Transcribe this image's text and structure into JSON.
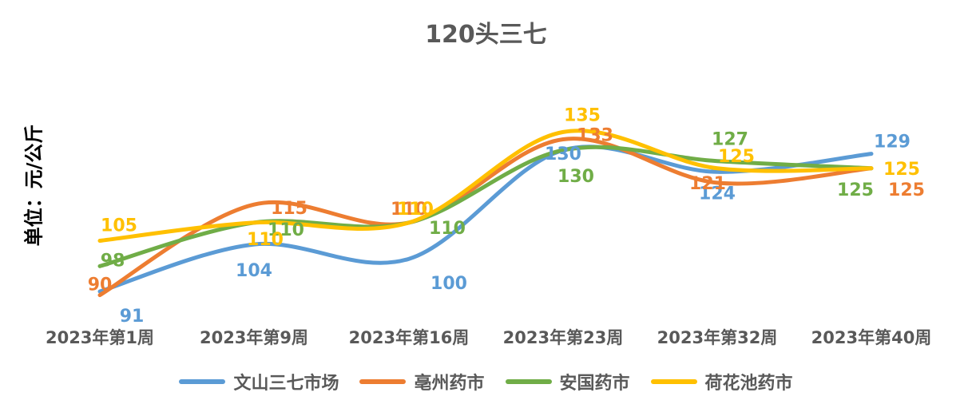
{
  "chart_data": {
    "type": "line",
    "title": "120头三七",
    "ylabel": "单位：元/公斤",
    "xlabel": "",
    "categories": [
      "2023年第1周",
      "2023年第9周",
      "2023年第16周",
      "2023年第23周",
      "2023年第32周",
      "2023年第40周"
    ],
    "ylim": [
      80,
      145
    ],
    "grid": false,
    "legend": "bottom",
    "series": [
      {
        "name": "文山三七市场",
        "color": "#5B9BD5",
        "values": [
          91,
          104,
          100,
          130,
          124,
          129
        ]
      },
      {
        "name": "亳州药市",
        "color": "#ED7D31",
        "values": [
          90,
          115,
          110,
          133,
          121,
          125
        ]
      },
      {
        "name": "安国药市",
        "color": "#70AD47",
        "values": [
          98,
          110,
          110,
          130,
          127,
          125
        ]
      },
      {
        "name": "荷花池药市",
        "color": "#FFC000",
        "values": [
          105,
          110,
          110,
          135,
          125,
          125
        ]
      }
    ]
  }
}
